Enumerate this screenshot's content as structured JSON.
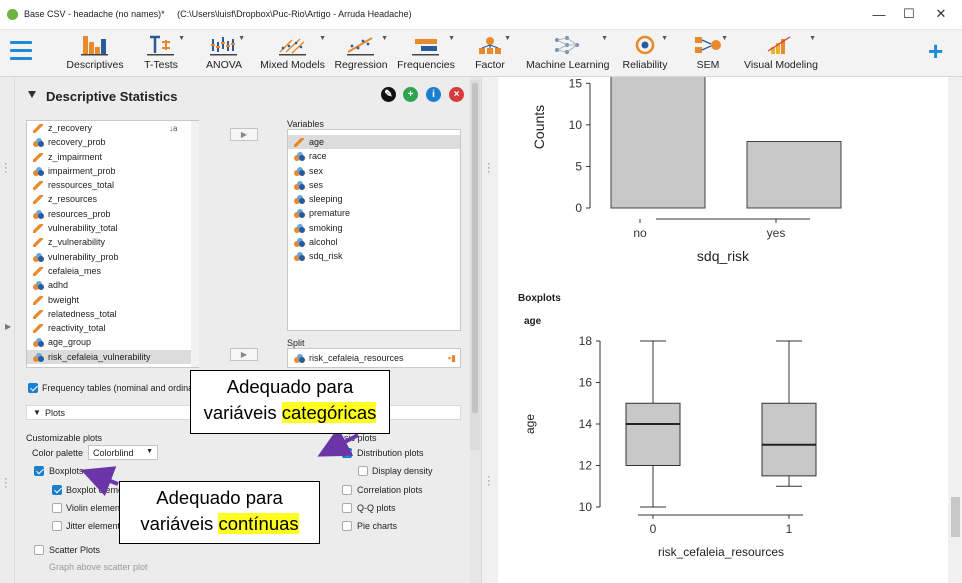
{
  "window": {
    "title": "Base CSV - headache (no names)*",
    "path": "(C:\\Users\\luisf\\Dropbox\\Puc-Rio\\Artigo - Arruda Headache)",
    "min": "—",
    "max": "☐",
    "close": "✕"
  },
  "ribbon": {
    "buttons": [
      {
        "label": "Descriptives"
      },
      {
        "label": "T-Tests"
      },
      {
        "label": "ANOVA"
      },
      {
        "label": "Mixed Models"
      },
      {
        "label": "Regression"
      },
      {
        "label": "Frequencies"
      },
      {
        "label": "Factor"
      },
      {
        "label": "Machine Learning"
      },
      {
        "label": "Reliability"
      },
      {
        "label": "SEM"
      },
      {
        "label": "Visual Modeling"
      }
    ],
    "plus": "+"
  },
  "panel": {
    "title": "Descriptive Statistics",
    "source_vars": [
      {
        "name": "z_recovery",
        "type": "scale"
      },
      {
        "name": "recovery_prob",
        "type": "nominal"
      },
      {
        "name": "z_impairment",
        "type": "scale"
      },
      {
        "name": "impairment_prob",
        "type": "nominal"
      },
      {
        "name": "ressources_total",
        "type": "scale"
      },
      {
        "name": "z_resources",
        "type": "scale"
      },
      {
        "name": "resources_prob",
        "type": "nominal"
      },
      {
        "name": "vulnerability_total",
        "type": "scale"
      },
      {
        "name": "z_vulnerability",
        "type": "scale"
      },
      {
        "name": "vulnerability_prob",
        "type": "nominal"
      },
      {
        "name": "cefaleia_mes",
        "type": "scale"
      },
      {
        "name": "adhd",
        "type": "nominal"
      },
      {
        "name": "bweight",
        "type": "scale"
      },
      {
        "name": "relatedness_total",
        "type": "scale"
      },
      {
        "name": "reactivity_total",
        "type": "scale"
      },
      {
        "name": "age_group",
        "type": "nominal"
      },
      {
        "name": "risk_cefaleia_vulnerability",
        "type": "nominal"
      }
    ],
    "variables_label": "Variables",
    "variables": [
      {
        "name": "age",
        "type": "scale"
      },
      {
        "name": "race",
        "type": "nominal"
      },
      {
        "name": "sex",
        "type": "nominal"
      },
      {
        "name": "ses",
        "type": "nominal"
      },
      {
        "name": "sleeping",
        "type": "nominal"
      },
      {
        "name": "premature",
        "type": "nominal"
      },
      {
        "name": "smoking",
        "type": "nominal"
      },
      {
        "name": "alcohol",
        "type": "nominal"
      },
      {
        "name": "sdq_risk",
        "type": "nominal"
      }
    ],
    "split_label": "Split",
    "split_var": "risk_cefaleia_resources",
    "arrow": "▶",
    "freq_tables": "Frequency tables (nominal and ordinal variables)",
    "plots_section": "Plots",
    "customizable_label": "Customizable plots",
    "color_palette_label": "Color palette",
    "color_palette_value": "Colorblind",
    "boxplots": "Boxplots",
    "boxplot_element": "Boxplot element",
    "violin_element": "Violin element",
    "jitter_element": "Jitter element",
    "scatter_plots": "Scatter Plots",
    "graph_above": "Graph above scatter plot",
    "basic_label": "Basic plots",
    "distribution_plots": "Distribution plots",
    "display_density": "Display density",
    "correlation_plots": "Correlation plots",
    "qq_plots": "Q-Q plots",
    "pie_charts": "Pie charts"
  },
  "callouts": {
    "cat_line1": "Adequado para",
    "cat_line2a": "variáveis ",
    "cat_line2b": "categóricas",
    "cont_line1": "Adequado para",
    "cont_line2a": "variáveis ",
    "cont_line2b": "contínuas"
  },
  "results": {
    "bar": {
      "ylabel": "Counts",
      "xlabel": "sdq_risk",
      "yticks": [
        "0",
        "5",
        "10",
        "15"
      ],
      "categories": [
        "no",
        "yes"
      ]
    },
    "boxplots_title": "Boxplots",
    "box_var": "age",
    "box": {
      "ylabel": "age",
      "xlabel": "risk_cefaleia_resources",
      "yticks": [
        "10",
        "12",
        "14",
        "16",
        "18"
      ],
      "categories": [
        "0",
        "1"
      ]
    }
  },
  "colors": {
    "accent": "#1b8ad8",
    "highlight": "#ffff1f",
    "arrow": "#6b35a8",
    "bar_fill": "#c8c8c8"
  },
  "chart_data": [
    {
      "type": "bar",
      "categories": [
        "no",
        "yes"
      ],
      "values": [
        16,
        8
      ],
      "xlabel": "sdq_risk",
      "ylabel": "Counts",
      "ylim": [
        0,
        16
      ]
    },
    {
      "type": "boxplot",
      "categories": [
        "0",
        "1"
      ],
      "series": [
        {
          "name": "0",
          "min": 10,
          "q1": 12,
          "median": 14,
          "q3": 15,
          "max": 18
        },
        {
          "name": "1",
          "min": 11,
          "q1": 11.5,
          "median": 13,
          "q3": 15,
          "max": 18
        }
      ],
      "xlabel": "risk_cefaleia_resources",
      "ylabel": "age",
      "ylim": [
        10,
        18
      ]
    }
  ]
}
